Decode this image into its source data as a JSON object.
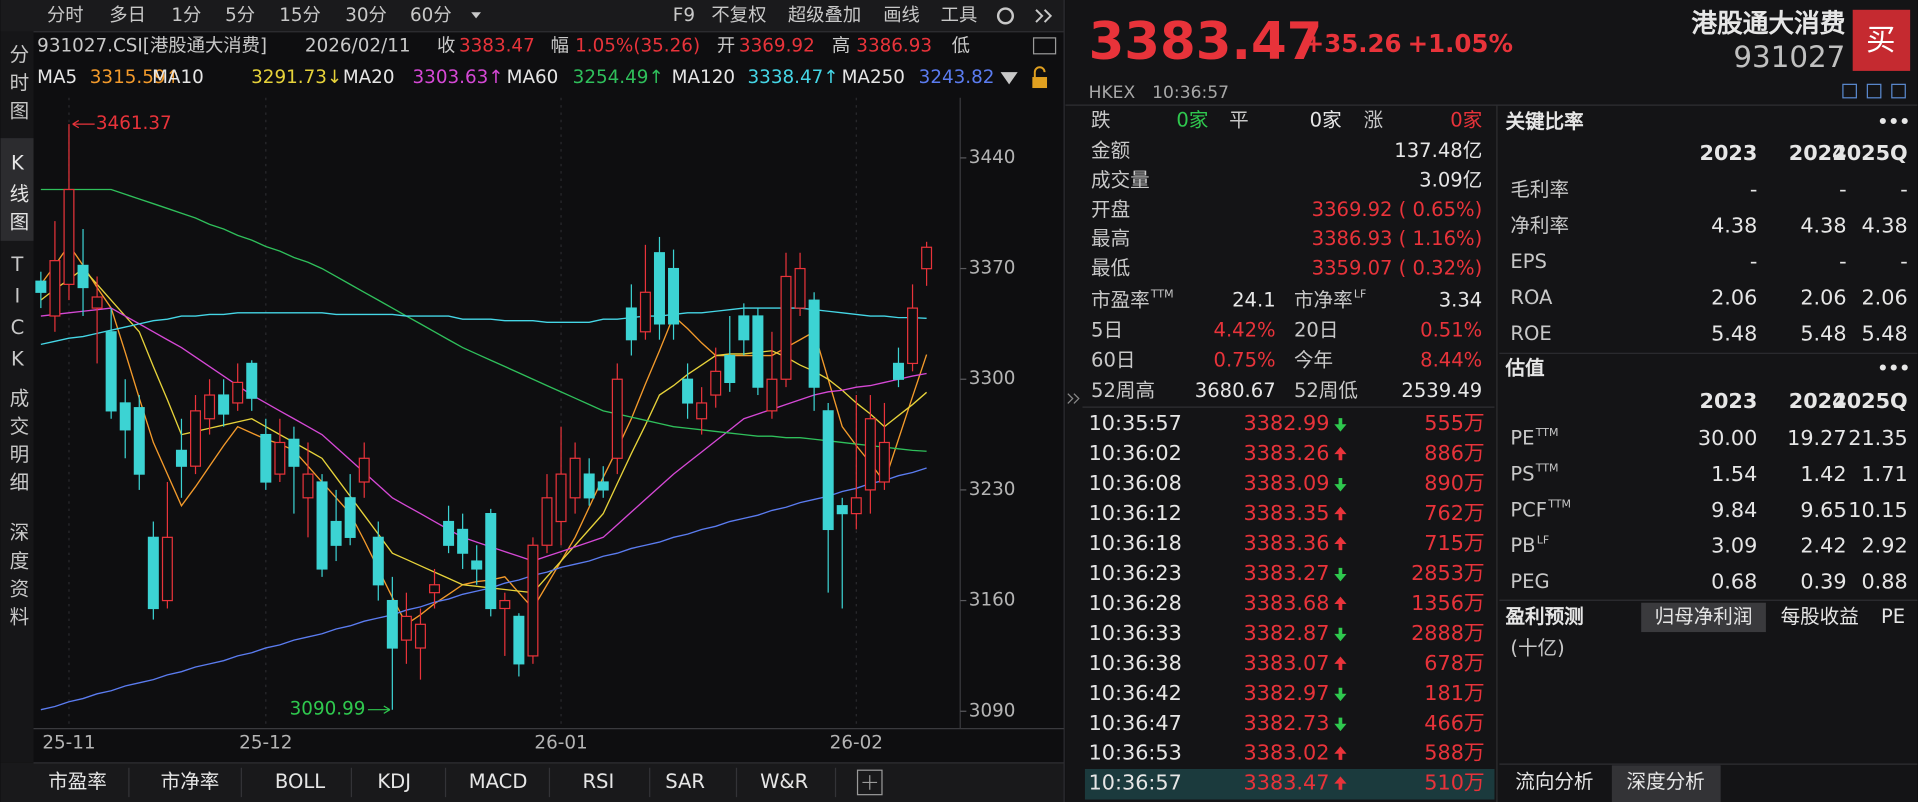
{
  "toolbar": {
    "periods": [
      "分时",
      "多日",
      "1分",
      "5分",
      "15分",
      "30分",
      "60分"
    ],
    "tools": [
      "F9",
      "不复权",
      "超级叠加",
      "画线",
      "工具"
    ]
  },
  "side_tabs": [
    "分时图",
    "K线图",
    "TICK",
    "成交明细",
    "深度资料"
  ],
  "info": {
    "code": "931027.CSI[港股通大消费]",
    "date": "2026/02/11",
    "close_label": "收",
    "close": "3383.47",
    "range_label": "幅",
    "range": "1.05%(35.26)",
    "open_label": "开",
    "open": "3369.92",
    "high_label": "高",
    "high": "3386.93",
    "low_label": "低"
  },
  "chart_data": {
    "type": "candlestick",
    "categories": [
      null,
      null,
      "25-11",
      null,
      null,
      null,
      null,
      null,
      null,
      null,
      null,
      null,
      null,
      null,
      null,
      null,
      "25-12",
      null,
      null,
      null,
      null,
      null,
      null,
      null,
      null,
      null,
      null,
      null,
      null,
      null,
      null,
      null,
      null,
      null,
      null,
      null,
      null,
      "26-01",
      null,
      null,
      null,
      null,
      null,
      null,
      null,
      null,
      null,
      null,
      null,
      null,
      null,
      null,
      null,
      null,
      null,
      null,
      null,
      null,
      "26-02",
      null,
      null,
      null,
      null,
      null
    ],
    "open": [
      3362,
      3340,
      3360,
      3372,
      3345,
      3330,
      3285,
      3282,
      3200,
      3160,
      3255,
      3245,
      3275,
      3290,
      3285,
      3310,
      3265,
      3240,
      3262,
      3225,
      3235,
      3210,
      3225,
      3235,
      3200,
      3160,
      3135,
      3130,
      3165,
      3210,
      3205,
      3185,
      3215,
      3155,
      3150,
      3125,
      3195,
      3210,
      3225,
      3240,
      3235,
      3250,
      3345,
      3330,
      3380,
      3370,
      3300,
      3275,
      3290,
      3315,
      3340,
      3340,
      3280,
      3300,
      3345,
      3350,
      3280,
      3220,
      3215,
      3230,
      3235,
      3310,
      3310,
      3369.92
    ],
    "high": [
      3368,
      3400,
      3461.37,
      3395,
      3365,
      3345,
      3300,
      3290,
      3210,
      3235,
      3275,
      3290,
      3300,
      3300,
      3310,
      3312,
      3275,
      3275,
      3270,
      3260,
      3240,
      3230,
      3240,
      3260,
      3210,
      3175,
      3165,
      3155,
      3180,
      3220,
      3215,
      3195,
      3218,
      3165,
      3152,
      3200,
      3240,
      3270,
      3260,
      3250,
      3245,
      3310,
      3360,
      3385,
      3390,
      3382,
      3310,
      3295,
      3320,
      3340,
      3348,
      3345,
      3330,
      3380,
      3380,
      3355,
      3285,
      3225,
      3290,
      3290,
      3285,
      3320,
      3360,
      3386.93
    ],
    "low": [
      3345,
      3330,
      3350,
      3340,
      3310,
      3275,
      3250,
      3230,
      3148,
      3155,
      3225,
      3240,
      3265,
      3270,
      3280,
      3280,
      3230,
      3235,
      3215,
      3200,
      3175,
      3185,
      3195,
      3225,
      3160,
      3090.99,
      3120,
      3110,
      3155,
      3190,
      3180,
      3170,
      3150,
      3125,
      3112,
      3120,
      3190,
      3195,
      3215,
      3220,
      3225,
      3240,
      3315,
      3325,
      3325,
      3325,
      3275,
      3265,
      3282,
      3292,
      3315,
      3290,
      3275,
      3295,
      3340,
      3280,
      3165,
      3155,
      3205,
      3215,
      3230,
      3295,
      3305,
      3359.07
    ],
    "close": [
      3355,
      3375,
      3420,
      3358,
      3352,
      3280,
      3268,
      3240,
      3155,
      3200,
      3245,
      3280,
      3290,
      3278,
      3298,
      3288,
      3235,
      3260,
      3245,
      3240,
      3180,
      3195,
      3200,
      3250,
      3170,
      3130,
      3150,
      3145,
      3170,
      3195,
      3190,
      3180,
      3155,
      3160,
      3120,
      3195,
      3225,
      3240,
      3250,
      3225,
      3230,
      3300,
      3325,
      3355,
      3335,
      3335,
      3285,
      3285,
      3305,
      3298,
      3325,
      3295,
      3300,
      3365,
      3370,
      3295,
      3205,
      3215,
      3225,
      3275,
      3260,
      3300,
      3345,
      3383.47
    ],
    "up_color": "#e8333a",
    "down_color": "#3cd3d3",
    "ylim": [
      3079,
      3478
    ],
    "yticks": [
      3090,
      3160,
      3230,
      3300,
      3370,
      3440
    ],
    "series": [
      {
        "name": "MA5",
        "color": "#f39a2b",
        "legend_value": "3315.59↑",
        "values": [
          3360,
          3372,
          3385,
          3372,
          3358,
          3345,
          3317,
          3288,
          3260,
          3240,
          3220,
          3232,
          3245,
          3258,
          3270,
          3266,
          3262,
          3259,
          3255,
          3245,
          3235,
          3225,
          3215,
          3198,
          3180,
          3162,
          3145,
          3151,
          3158,
          3164,
          3170,
          3172,
          3173,
          3175,
          3165,
          3155,
          3170,
          3185,
          3200,
          3219,
          3238,
          3256,
          3275,
          3297,
          3318,
          3340,
          3332,
          3323,
          3315,
          3315,
          3315,
          3315,
          3315,
          3320,
          3325,
          3330,
          3300,
          3270,
          3258,
          3247,
          3235,
          3262,
          3289,
          3315.59
        ]
      },
      {
        "name": "MA10",
        "color": "#e6d23a",
        "legend_value": "3291.73↓",
        "values": [
          3350,
          3357,
          3363,
          3370,
          3360,
          3350,
          3340,
          3330,
          3308,
          3287,
          3265,
          3267,
          3269,
          3271,
          3273,
          3275,
          3270,
          3265,
          3260,
          3255,
          3250,
          3238,
          3226,
          3214,
          3202,
          3190,
          3186,
          3182,
          3178,
          3174,
          3170,
          3169,
          3168,
          3167,
          3166,
          3165,
          3175,
          3185,
          3195,
          3205,
          3215,
          3234,
          3253,
          3271,
          3290,
          3296,
          3303,
          3309,
          3315,
          3316,
          3316,
          3317,
          3318,
          3314,
          3309,
          3305,
          3300,
          3293,
          3285,
          3278,
          3270,
          3277,
          3284,
          3291.73
        ]
      },
      {
        "name": "MA20",
        "color": "#d548d5",
        "legend_value": "3303.63↑",
        "values": [
          3340,
          3341,
          3342,
          3343,
          3344,
          3345,
          3340,
          3335,
          3330,
          3325,
          3320,
          3314,
          3308,
          3302,
          3296,
          3290,
          3285,
          3280,
          3275,
          3270,
          3265,
          3257,
          3249,
          3241,
          3233,
          3225,
          3220,
          3215,
          3210,
          3205,
          3200,
          3197,
          3194,
          3191,
          3188,
          3185,
          3188,
          3191,
          3194,
          3197,
          3200,
          3208,
          3216,
          3224,
          3232,
          3240,
          3247,
          3254,
          3261,
          3268,
          3275,
          3278,
          3281,
          3284,
          3287,
          3290,
          3292,
          3293,
          3295,
          3296,
          3298,
          3300,
          3302,
          3303.63
        ]
      },
      {
        "name": "MA60",
        "color": "#2fbf5b",
        "legend_value": "3254.49↑",
        "values": [
          3420,
          3420,
          3420,
          3420,
          3420,
          3420,
          3417,
          3414,
          3411,
          3408,
          3405,
          3402,
          3398,
          3395,
          3391,
          3388,
          3384,
          3381,
          3377,
          3374,
          3370,
          3365,
          3360,
          3355,
          3350,
          3345,
          3340,
          3335,
          3330,
          3325,
          3320,
          3316,
          3312,
          3308,
          3304,
          3300,
          3296,
          3292,
          3288,
          3284,
          3280,
          3278,
          3276,
          3274,
          3272,
          3270,
          3269,
          3268,
          3267,
          3266,
          3265,
          3264,
          3264,
          3263,
          3263,
          3262,
          3261,
          3260,
          3259,
          3258,
          3257,
          3256,
          3255,
          3254.49
        ]
      },
      {
        "name": "MA120",
        "color": "#45d6e6",
        "legend_value": "3338.47↑",
        "values": [
          3322,
          3324,
          3326,
          3327,
          3329,
          3331,
          3333,
          3335,
          3337,
          3338,
          3340,
          3340,
          3341,
          3341,
          3342,
          3342,
          3342,
          3342,
          3342,
          3342,
          3342,
          3341,
          3341,
          3341,
          3341,
          3341,
          3340,
          3340,
          3340,
          3340,
          3338,
          3338,
          3338,
          3337,
          3337,
          3337,
          3336,
          3336,
          3336,
          3336,
          3338,
          3338,
          3339,
          3340,
          3340,
          3341,
          3342,
          3342,
          3343,
          3344,
          3345,
          3345,
          3345,
          3345,
          3345,
          3344,
          3343,
          3342,
          3341,
          3340,
          3340,
          3339,
          3339,
          3338.47
        ]
      },
      {
        "name": "MA250",
        "color": "#5b7cf0",
        "legend_value": "3243.82",
        "values": [
          3091,
          3093,
          3096,
          3098,
          3101,
          3103,
          3106,
          3108,
          3110,
          3113,
          3115,
          3118,
          3120,
          3122,
          3125,
          3127,
          3130,
          3132,
          3135,
          3137,
          3139,
          3142,
          3144,
          3147,
          3149,
          3151,
          3154,
          3156,
          3159,
          3161,
          3164,
          3166,
          3168,
          3171,
          3173,
          3176,
          3178,
          3181,
          3183,
          3185,
          3188,
          3190,
          3193,
          3195,
          3197,
          3200,
          3202,
          3205,
          3207,
          3210,
          3212,
          3214,
          3217,
          3219,
          3222,
          3224,
          3226,
          3229,
          3231,
          3234,
          3236,
          3239,
          3241,
          3243.82
        ]
      }
    ],
    "annotations": [
      {
        "value": 3461.37,
        "color": "#e8333a"
      },
      {
        "value": 3090.99,
        "color": "#2fc84e"
      }
    ]
  },
  "indicator_tabs": [
    "市盈率",
    "市净率",
    "BOLL",
    "KDJ",
    "MACD",
    "RSI",
    "SAR",
    "W&R"
  ],
  "quote": {
    "price": "3383.47",
    "change": "+35.26",
    "change_pct": "+1.05%",
    "name": "港股通大消费",
    "code": "931027",
    "buy": "买",
    "exchange": "HKEX",
    "time": "10:36:57"
  },
  "breadth": [
    {
      "label": "跌",
      "value": "0家",
      "color": "#2fc84e"
    },
    {
      "label": "平",
      "value": "0家",
      "color": "#e6e6e6"
    },
    {
      "label": "涨",
      "value": "0家",
      "color": "#e8333a"
    }
  ],
  "stats": [
    {
      "label": "金额",
      "value": "137.48亿",
      "color": "#e6e6e6"
    },
    {
      "label": "成交量",
      "value": "3.09亿",
      "color": "#e6e6e6"
    },
    {
      "label": "开盘",
      "value": "3369.92 ( 0.65%)",
      "color": "#e8333a"
    },
    {
      "label": "最高",
      "value": "3386.93 ( 1.16%)",
      "color": "#e8333a"
    },
    {
      "label": "最低",
      "value": "3359.07 ( 0.32%)",
      "color": "#e8333a"
    }
  ],
  "pairs": [
    [
      {
        "label": "市盈率",
        "sup": "TTM",
        "value": "24.1",
        "color": "#e6e6e6"
      },
      {
        "label": "市净率",
        "sup": "LF",
        "value": "3.34",
        "color": "#e6e6e6"
      }
    ],
    [
      {
        "label": "5日",
        "value": "4.42%",
        "color": "#e8333a"
      },
      {
        "label": "20日",
        "value": "0.51%",
        "color": "#e8333a"
      }
    ],
    [
      {
        "label": "60日",
        "value": "0.75%",
        "color": "#e8333a"
      },
      {
        "label": "今年",
        "value": "8.44%",
        "color": "#e8333a"
      }
    ],
    [
      {
        "label": "52周高",
        "value": "3680.67",
        "color": "#e6e6e6"
      },
      {
        "label": "52周低",
        "value": "2539.49",
        "color": "#e6e6e6"
      }
    ]
  ],
  "ticks": [
    {
      "time": "10:35:57",
      "price": "3382.99",
      "dir": "down",
      "volume": "555万"
    },
    {
      "time": "10:36:02",
      "price": "3383.26",
      "dir": "up",
      "volume": "886万"
    },
    {
      "time": "10:36:08",
      "price": "3383.09",
      "dir": "down",
      "volume": "890万"
    },
    {
      "time": "10:36:12",
      "price": "3383.35",
      "dir": "up",
      "volume": "762万"
    },
    {
      "time": "10:36:18",
      "price": "3383.36",
      "dir": "up",
      "volume": "715万"
    },
    {
      "time": "10:36:23",
      "price": "3383.27",
      "dir": "down",
      "volume": "2853万"
    },
    {
      "time": "10:36:28",
      "price": "3383.68",
      "dir": "up",
      "volume": "1356万"
    },
    {
      "time": "10:36:33",
      "price": "3382.87",
      "dir": "down",
      "volume": "2888万"
    },
    {
      "time": "10:36:38",
      "price": "3383.07",
      "dir": "up",
      "volume": "678万"
    },
    {
      "time": "10:36:42",
      "price": "3382.97",
      "dir": "down",
      "volume": "181万"
    },
    {
      "time": "10:36:47",
      "price": "3382.73",
      "dir": "down",
      "volume": "466万"
    },
    {
      "time": "10:36:53",
      "price": "3383.02",
      "dir": "up",
      "volume": "588万"
    },
    {
      "time": "10:36:57",
      "price": "3383.47",
      "dir": "up",
      "volume": "510万"
    }
  ],
  "ratios": {
    "title": "关键比率",
    "more": "•••",
    "years": [
      "2023",
      "2024",
      "2025Q"
    ],
    "rows": [
      {
        "label": "毛利率",
        "values": [
          "-",
          "-",
          "-"
        ]
      },
      {
        "label": "净利率",
        "values": [
          "4.38",
          "4.38",
          "4.38"
        ]
      },
      {
        "label": "EPS",
        "values": [
          "-",
          "-",
          "-"
        ]
      },
      {
        "label": "ROA",
        "values": [
          "2.06",
          "2.06",
          "2.06"
        ]
      },
      {
        "label": "ROE",
        "values": [
          "5.48",
          "5.48",
          "5.48"
        ]
      }
    ]
  },
  "valuation": {
    "title": "估值",
    "more": "•••",
    "years": [
      "2023",
      "2024",
      "2025Q"
    ],
    "rows": [
      {
        "label": "PE",
        "sup": "TTM",
        "values": [
          "30.00",
          "19.27",
          "21.35"
        ]
      },
      {
        "label": "PS",
        "sup": "TTM",
        "values": [
          "1.54",
          "1.42",
          "1.71"
        ]
      },
      {
        "label": "PCF",
        "sup": "TTM",
        "values": [
          "9.84",
          "9.65",
          "10.15"
        ]
      },
      {
        "label": "PB",
        "sup": "LF",
        "values": [
          "3.09",
          "2.42",
          "2.92"
        ]
      },
      {
        "label": "PEG",
        "values": [
          "0.68",
          "0.39",
          "0.88"
        ]
      }
    ]
  },
  "forecast": {
    "title": "盈利预测",
    "tabs": [
      "归母净利润",
      "每股收益",
      "PE"
    ],
    "unit": "(十亿)"
  },
  "bottom_tabs": [
    "流向分析",
    "深度分析"
  ]
}
